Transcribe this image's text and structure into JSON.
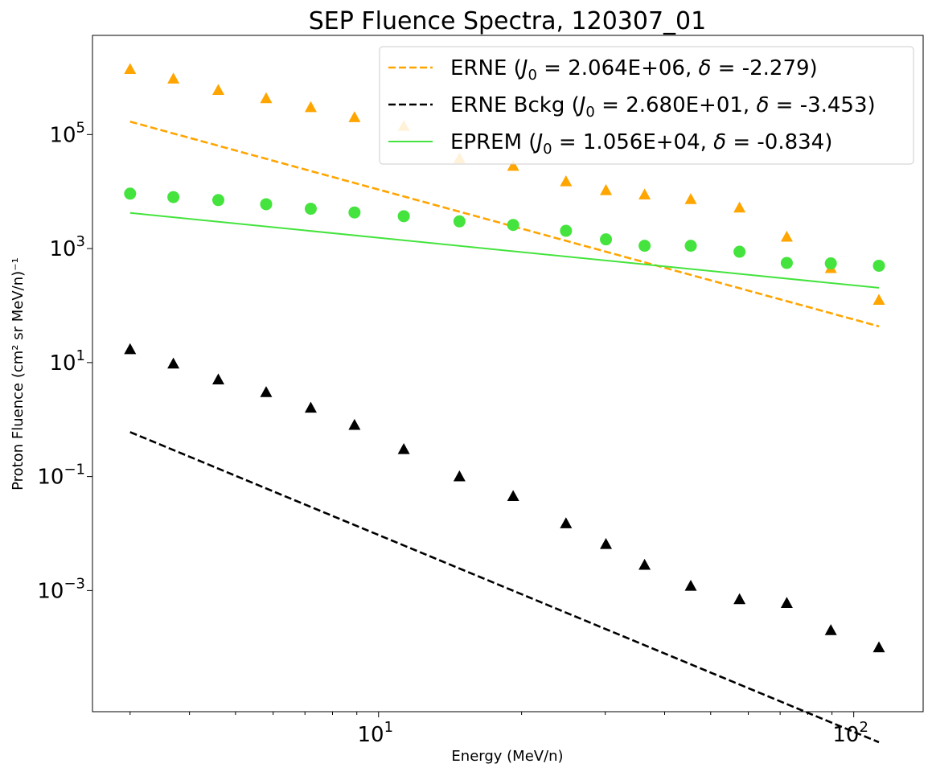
{
  "chart_data": {
    "type": "scatter",
    "title": "SEP Fluence Spectra, 120307_01",
    "xlabel": "Energy (MeV/n)",
    "ylabel": "Proton Fluence (cm² sr MeV/n)⁻¹",
    "xscale": "log",
    "yscale": "log",
    "xlim": [
      2.5,
      140
    ],
    "ylim": [
      7.5e-06,
      5500000
    ],
    "xticks": [
      {
        "value": 10,
        "base": "10",
        "exp": "1"
      },
      {
        "value": 100,
        "base": "10",
        "exp": "2"
      }
    ],
    "yticks": [
      {
        "value": 0.001,
        "base": "10",
        "exp": "−3"
      },
      {
        "value": 0.1,
        "base": "10",
        "exp": "−1"
      },
      {
        "value": 10,
        "base": "10",
        "exp": "1"
      },
      {
        "value": 1000,
        "base": "10",
        "exp": "3"
      },
      {
        "value": 100000,
        "base": "10",
        "exp": "5"
      }
    ],
    "grid": false,
    "legend_position": "top-right",
    "x": [
      3.0,
      3.7,
      4.6,
      5.8,
      7.2,
      8.9,
      11.3,
      14.8,
      19.2,
      24.8,
      30.1,
      36.3,
      45.4,
      57.5,
      72.3,
      89.5,
      113.0
    ],
    "series": [
      {
        "name": "ERNE",
        "legend_pre": "ERNE (",
        "J0": "2.064E+06",
        "delta": "-2.279",
        "color": "#ffa500",
        "marker": "triangle",
        "line": "dashed",
        "fit": {
          "J0": 2064000,
          "delta": -2.279
        },
        "values": [
          1400000,
          950000,
          600000,
          430000,
          300000,
          200000,
          140000,
          38000,
          28000,
          15000,
          10500,
          8800,
          7300,
          5200,
          1600,
          450,
          125
        ]
      },
      {
        "name": "ERNE Bckg",
        "legend_pre": "ERNE Bckg (",
        "J0": "2.680E+01",
        "delta": "-3.453",
        "color": "#000000",
        "marker": "triangle",
        "line": "dashed",
        "fit": {
          "J0": 26.8,
          "delta": -3.453
        },
        "values": [
          17,
          9.5,
          5,
          3,
          1.6,
          0.8,
          0.3,
          0.1,
          0.045,
          0.015,
          0.0065,
          0.0028,
          0.0012,
          0.0007,
          0.0006,
          0.0002,
          0.0001
        ]
      },
      {
        "name": "EPREM",
        "legend_pre": "EPREM (",
        "J0": "1.056E+04",
        "delta": "-0.834",
        "color": "#44e33d",
        "marker": "circle",
        "line": "solid",
        "fit": {
          "J0": 10560,
          "delta": -0.834
        },
        "values": [
          9200,
          8000,
          7100,
          6000,
          5000,
          4300,
          3700,
          3000,
          2600,
          2050,
          1450,
          1120,
          1120,
          880,
          560,
          550,
          500
        ]
      }
    ]
  }
}
